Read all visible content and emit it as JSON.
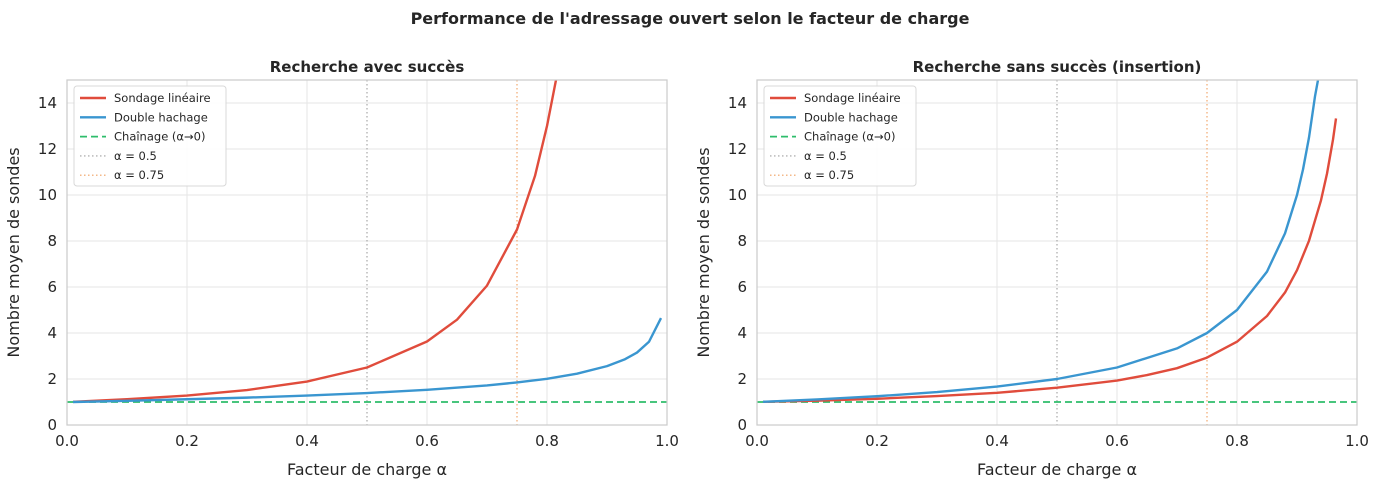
{
  "figure": {
    "suptitle": "Performance de l'adressage ouvert selon le facteur de charge"
  },
  "chart_data": [
    {
      "type": "line",
      "title": "Recherche avec succès",
      "xlabel": "Facteur de charge α",
      "ylabel": "Nombre moyen de sondes",
      "xlim": [
        0,
        1
      ],
      "ylim": [
        0,
        15
      ],
      "xticks": [
        "0.0",
        "0.2",
        "0.4",
        "0.6",
        "0.8",
        "1.0"
      ],
      "yticks": [
        "0",
        "2",
        "4",
        "6",
        "8",
        "10",
        "12",
        "14"
      ],
      "grid": true,
      "legend_position": "top-left",
      "series": [
        {
          "name": "Sondage linéaire",
          "color": "#e04c3c",
          "style": "solid",
          "x": [
            0.01,
            0.1,
            0.2,
            0.3,
            0.4,
            0.5,
            0.6,
            0.65,
            0.7,
            0.75,
            0.78,
            0.8,
            0.815
          ],
          "y": [
            1.01,
            1.12,
            1.28,
            1.52,
            1.89,
            2.5,
            3.63,
            4.58,
            6.06,
            8.5,
            10.83,
            13.0,
            15.0
          ]
        },
        {
          "name": "Double hachage",
          "color": "#3a96d0",
          "style": "solid",
          "x": [
            0.01,
            0.1,
            0.2,
            0.3,
            0.4,
            0.5,
            0.6,
            0.7,
            0.75,
            0.8,
            0.85,
            0.9,
            0.93,
            0.95,
            0.97,
            0.99
          ],
          "y": [
            1.0,
            1.05,
            1.12,
            1.19,
            1.28,
            1.39,
            1.53,
            1.72,
            1.85,
            2.01,
            2.23,
            2.56,
            2.86,
            3.15,
            3.62,
            4.65
          ]
        },
        {
          "name": "Chaînage (α→0)",
          "color": "#2ebd6b",
          "style": "dashed",
          "x": [
            0,
            1
          ],
          "y": [
            1,
            1
          ]
        },
        {
          "name": "α = 0.5",
          "color": "#a0a0a0",
          "style": "dotted",
          "vline": 0.5
        },
        {
          "name": "α = 0.75",
          "color": "#f0a060",
          "style": "dotted",
          "vline": 0.75
        }
      ]
    },
    {
      "type": "line",
      "title": "Recherche sans succès (insertion)",
      "xlabel": "Facteur de charge α",
      "ylabel": "Nombre moyen de sondes",
      "xlim": [
        0,
        1
      ],
      "ylim": [
        0,
        15
      ],
      "xticks": [
        "0.0",
        "0.2",
        "0.4",
        "0.6",
        "0.8",
        "1.0"
      ],
      "yticks": [
        "0",
        "2",
        "4",
        "6",
        "8",
        "10",
        "12",
        "14"
      ],
      "grid": true,
      "legend_position": "top-left",
      "series": [
        {
          "name": "Sondage linéaire",
          "color": "#e04c3c",
          "style": "solid",
          "x": [
            0.01,
            0.1,
            0.2,
            0.3,
            0.4,
            0.5,
            0.6,
            0.65,
            0.7,
            0.75,
            0.8,
            0.85,
            0.88,
            0.9,
            0.92,
            0.94,
            0.95,
            0.96,
            0.965
          ],
          "y": [
            1.01,
            1.06,
            1.14,
            1.26,
            1.4,
            1.62,
            1.93,
            2.17,
            2.47,
            2.93,
            3.62,
            4.74,
            5.76,
            6.73,
            8.01,
            9.77,
            10.93,
            12.41,
            13.33
          ]
        },
        {
          "name": "Double hachage",
          "color": "#3a96d0",
          "style": "solid",
          "x": [
            0.01,
            0.1,
            0.2,
            0.3,
            0.4,
            0.5,
            0.6,
            0.7,
            0.75,
            0.8,
            0.85,
            0.88,
            0.9,
            0.91,
            0.92,
            0.93,
            0.935
          ],
          "y": [
            1.01,
            1.11,
            1.25,
            1.43,
            1.67,
            2.0,
            2.5,
            3.33,
            4.0,
            5.0,
            6.67,
            8.33,
            10.0,
            11.11,
            12.5,
            14.29,
            15.0
          ]
        },
        {
          "name": "Chaînage (α→0)",
          "color": "#2ebd6b",
          "style": "dashed",
          "x": [
            0,
            1
          ],
          "y": [
            1,
            1
          ]
        },
        {
          "name": "α = 0.5",
          "color": "#a0a0a0",
          "style": "dotted",
          "vline": 0.5
        },
        {
          "name": "α = 0.75",
          "color": "#f0a060",
          "style": "dotted",
          "vline": 0.75
        }
      ]
    }
  ]
}
